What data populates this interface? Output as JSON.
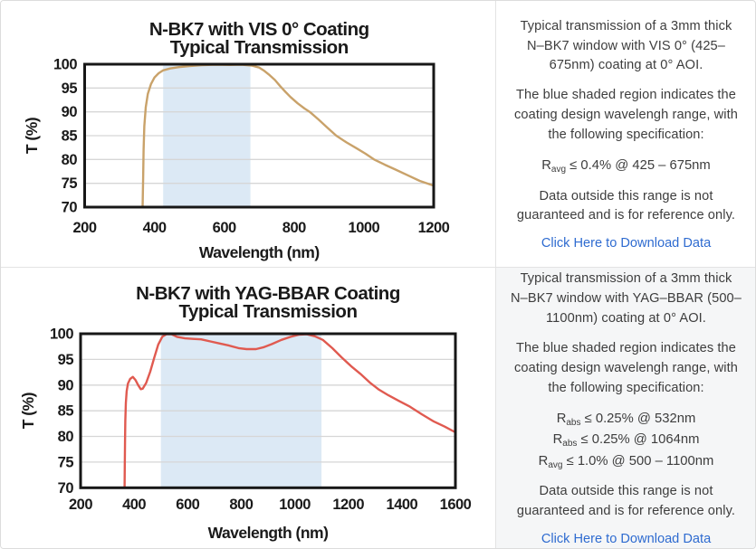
{
  "colors": {
    "panel_border": "#e3e3e3",
    "info_bg_gray": "#f5f6f7",
    "body_text": "#3d3d3d",
    "link_blue": "#2e6bd0",
    "axis_black": "#171717",
    "gridline": "#d6d6d6",
    "shade_blue": "#dce9f5",
    "curve_vis": "#c9a26a",
    "curve_yag": "#e05a50"
  },
  "chart_data": [
    {
      "type": "line",
      "title": "N-BK7 with VIS 0° Coating",
      "subtitle": "Typical Transmission",
      "xlabel": "Wavelength (nm)",
      "ylabel": "T (%)",
      "xlim": [
        200,
        1200
      ],
      "ylim": [
        70,
        100
      ],
      "xticks": [
        200,
        400,
        600,
        800,
        1000,
        1200
      ],
      "yticks": [
        70,
        75,
        80,
        85,
        90,
        95,
        100
      ],
      "grid": "horizontal",
      "legend": "none",
      "shaded_region": {
        "x0": 425,
        "x1": 675,
        "meaning": "coating design wavelength range"
      },
      "line_color": "#c9a26a",
      "series": [
        {
          "name": "Typical Transmission",
          "points": [
            [
              366,
              70
            ],
            [
              367.5,
              76
            ],
            [
              369,
              82
            ],
            [
              371,
              87
            ],
            [
              375,
              91
            ],
            [
              381,
              93.8
            ],
            [
              390,
              95.8
            ],
            [
              400,
              97.2
            ],
            [
              412,
              98.1
            ],
            [
              425,
              98.7
            ],
            [
              445,
              99.1
            ],
            [
              470,
              99.4
            ],
            [
              500,
              99.6
            ],
            [
              535,
              99.8
            ],
            [
              575,
              99.9
            ],
            [
              615,
              99.85
            ],
            [
              650,
              99.9
            ],
            [
              680,
              99.7
            ],
            [
              700,
              99.3
            ],
            [
              715,
              98.6
            ],
            [
              730,
              97.7
            ],
            [
              745,
              96.7
            ],
            [
              760,
              95.4
            ],
            [
              775,
              94.2
            ],
            [
              790,
              93.1
            ],
            [
              810,
              91.8
            ],
            [
              830,
              90.7
            ],
            [
              845,
              90
            ],
            [
              870,
              88.4
            ],
            [
              895,
              86.7
            ],
            [
              921,
              85
            ],
            [
              950,
              83.6
            ],
            [
              980,
              82.3
            ],
            [
              1005,
              81.2
            ],
            [
              1029,
              80
            ],
            [
              1060,
              78.9
            ],
            [
              1090,
              77.9
            ],
            [
              1125,
              76.7
            ],
            [
              1160,
              75.5
            ],
            [
              1200,
              74.5
            ]
          ]
        }
      ]
    },
    {
      "type": "line",
      "title": "N-BK7 with YAG-BBAR Coating",
      "subtitle": "Typical Transmission",
      "xlabel": "Wavelength (nm)",
      "ylabel": "T (%)",
      "xlim": [
        200,
        1600
      ],
      "ylim": [
        70,
        100
      ],
      "xticks": [
        200,
        400,
        600,
        800,
        1000,
        1200,
        1400,
        1600
      ],
      "yticks": [
        70,
        75,
        80,
        85,
        90,
        95,
        100
      ],
      "grid": "horizontal",
      "legend": "none",
      "shaded_region": {
        "x0": 500,
        "x1": 1100,
        "meaning": "coating design wavelength range"
      },
      "line_color": "#e05a50",
      "series": [
        {
          "name": "Typical Transmission",
          "points": [
            [
              364.5,
              70
            ],
            [
              365,
              74
            ],
            [
              366,
              79
            ],
            [
              367,
              83
            ],
            [
              369,
              86.5
            ],
            [
              372,
              88.8
            ],
            [
              377,
              90.3
            ],
            [
              385,
              91.2
            ],
            [
              395,
              91.6
            ],
            [
              405,
              91
            ],
            [
              415,
              90
            ],
            [
              425,
              89.2
            ],
            [
              432,
              89.3
            ],
            [
              445,
              90.4
            ],
            [
              460,
              92.6
            ],
            [
              475,
              95.3
            ],
            [
              490,
              97.9
            ],
            [
              505,
              99.4
            ],
            [
              520,
              99.9
            ],
            [
              540,
              99.9
            ],
            [
              560,
              99.4
            ],
            [
              590,
              99.1
            ],
            [
              620,
              99
            ],
            [
              650,
              98.9
            ],
            [
              685,
              98.5
            ],
            [
              720,
              98.1
            ],
            [
              755,
              97.7
            ],
            [
              790,
              97.2
            ],
            [
              820,
              97
            ],
            [
              855,
              97
            ],
            [
              885,
              97.4
            ],
            [
              915,
              98
            ],
            [
              950,
              98.8
            ],
            [
              985,
              99.4
            ],
            [
              1015,
              99.8
            ],
            [
              1045,
              99.9
            ],
            [
              1075,
              99.5
            ],
            [
              1105,
              98.8
            ],
            [
              1140,
              97.2
            ],
            [
              1175,
              95.4
            ],
            [
              1210,
              93.7
            ],
            [
              1245,
              92.2
            ],
            [
              1280,
              90.5
            ],
            [
              1315,
              89.1
            ],
            [
              1350,
              88
            ],
            [
              1390,
              86.9
            ],
            [
              1430,
              85.8
            ],
            [
              1475,
              84.3
            ],
            [
              1520,
              82.9
            ],
            [
              1560,
              81.9
            ],
            [
              1600,
              80.8
            ]
          ]
        }
      ]
    }
  ],
  "panels": [
    {
      "info": {
        "p1": "Typical transmission of a 3mm thick N–BK7 window with VIS 0° (425–675nm) coating at 0° AOI.",
        "p2": "The blue shaded region indicates the coating design wavelengh range, with the following specification:",
        "specs": [
          {
            "base": "R",
            "sub": "avg",
            "text": "≤ 0.4% @ 425 – 675nm"
          }
        ],
        "p3": "Data outside this range is not guaranteed and is for reference only.",
        "link_label": "Click Here to Download Data"
      }
    },
    {
      "info": {
        "p1": "Typical transmission of a 3mm thick N–BK7 window with YAG–BBAR (500–1100nm) coating at 0° AOI.",
        "p2": "The blue shaded region indicates the coating design wavelengh range, with the following specification:",
        "specs": [
          {
            "base": "R",
            "sub": "abs",
            "text": "≤ 0.25% @ 532nm"
          },
          {
            "base": "R",
            "sub": "abs",
            "text": "≤ 0.25% @ 1064nm"
          },
          {
            "base": "R",
            "sub": "avg",
            "text": "≤ 1.0% @ 500 – 1100nm"
          }
        ],
        "p3": "Data outside this range is not guaranteed and is for reference only.",
        "link_label": "Click Here to Download Data"
      }
    }
  ]
}
